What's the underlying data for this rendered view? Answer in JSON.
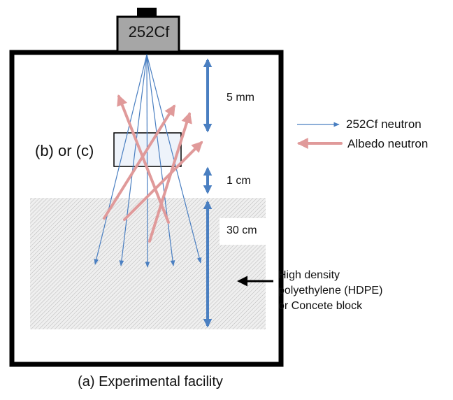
{
  "source": {
    "label": "252Cf"
  },
  "sample": {
    "label": "(b) or (c)"
  },
  "dimensions": {
    "gap_source_sample": "5 mm",
    "gap_sample_block": "1 cm",
    "block_thickness": "30 cm"
  },
  "legend": {
    "items": [
      {
        "label": "252Cf neutron",
        "color": "#4a7fc1"
      },
      {
        "label": "Albedo neutron",
        "color": "#e09a9a"
      }
    ]
  },
  "block": {
    "lines": [
      "High density",
      "polyethylene (HDPE)",
      "or Concete block"
    ]
  },
  "caption": "(a) Experimental facility",
  "colors": {
    "frame": "#000000",
    "source_body": "#a6a6a6",
    "dimension_arrow": "#4a7fc1",
    "block_fill": "#d9d9d9"
  }
}
